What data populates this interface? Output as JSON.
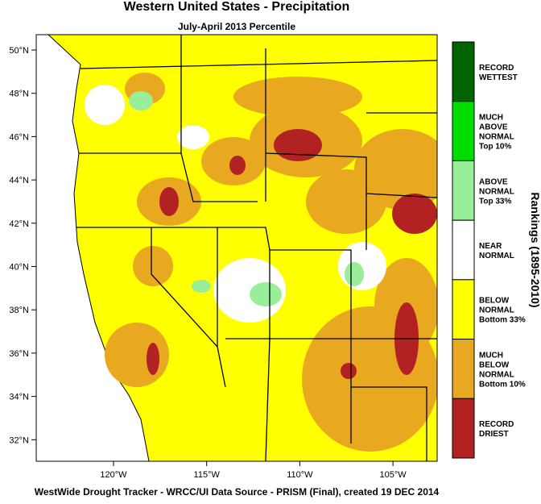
{
  "header": {
    "title": "Western United States - Precipitation",
    "subtitle": "July-April 2013 Percentile"
  },
  "map": {
    "lat_ticks": [
      "50°N",
      "48°N",
      "46°N",
      "44°N",
      "42°N",
      "40°N",
      "38°N",
      "36°N",
      "34°N",
      "32°N"
    ],
    "lon_ticks": [
      "120°W",
      "115°W",
      "110°W",
      "105°W"
    ]
  },
  "legend": {
    "title": "Rankings (1895-2010)",
    "items": [
      {
        "lines": [
          "RECORD",
          "WETTEST"
        ],
        "color": "#006400"
      },
      {
        "lines": [
          "MUCH",
          "ABOVE",
          "NORMAL",
          "Top 10%"
        ],
        "color": "#00dd00"
      },
      {
        "lines": [
          "ABOVE",
          "NORMAL",
          "Top 33%"
        ],
        "color": "#99ee99"
      },
      {
        "lines": [
          "NEAR",
          "NORMAL"
        ],
        "color": "#ffffff"
      },
      {
        "lines": [
          "BELOW",
          "NORMAL",
          "Bottom 33%"
        ],
        "color": "#ffff00"
      },
      {
        "lines": [
          "MUCH",
          "BELOW",
          "NORMAL",
          "Bottom 10%"
        ],
        "color": "#e8a820"
      },
      {
        "lines": [
          "RECORD",
          "DRIEST"
        ],
        "color": "#b22222"
      }
    ]
  },
  "footer": "WestWide Drought Tracker - WRCC/UI  Data Source - PRISM (Final), created 19 DEC 2014"
}
